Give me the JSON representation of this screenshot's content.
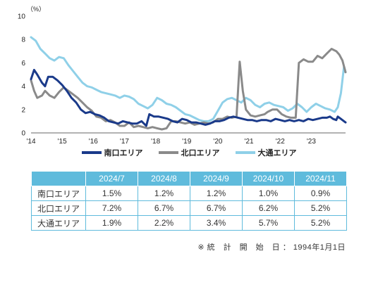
{
  "chart_data": {
    "type": "line",
    "ylabel": "（%）",
    "ylim": [
      0,
      10
    ],
    "yticks": [
      0,
      2,
      4,
      6,
      8,
      10
    ],
    "xlim": [
      2014.0,
      2024.1
    ],
    "xticks": [
      {
        "value": 2014,
        "label": "'14"
      },
      {
        "value": 2015,
        "label": "'15"
      },
      {
        "value": 2016,
        "label": "'16"
      },
      {
        "value": 2017,
        "label": "'17"
      },
      {
        "value": 2018,
        "label": "'18"
      },
      {
        "value": 2019,
        "label": "'19"
      },
      {
        "value": 2020,
        "label": "'20"
      },
      {
        "value": 2021,
        "label": "'21"
      },
      {
        "value": 2022,
        "label": "'22"
      },
      {
        "value": 2023,
        "label": "'23"
      }
    ],
    "legend_position": "bottom",
    "grid": false,
    "series": [
      {
        "name": "南口エリア",
        "color": "#1a3a8a",
        "points": [
          [
            2014.0,
            4.6
          ],
          [
            2014.1,
            5.4
          ],
          [
            2014.2,
            5.0
          ],
          [
            2014.35,
            4.3
          ],
          [
            2014.45,
            4.0
          ],
          [
            2014.55,
            4.8
          ],
          [
            2014.7,
            4.8
          ],
          [
            2014.85,
            4.5
          ],
          [
            2015.0,
            4.1
          ],
          [
            2015.15,
            3.6
          ],
          [
            2015.3,
            3.0
          ],
          [
            2015.45,
            2.6
          ],
          [
            2015.6,
            2.0
          ],
          [
            2015.75,
            1.7
          ],
          [
            2015.9,
            1.8
          ],
          [
            2016.05,
            1.6
          ],
          [
            2016.2,
            1.5
          ],
          [
            2016.35,
            1.3
          ],
          [
            2016.5,
            1.0
          ],
          [
            2016.65,
            0.9
          ],
          [
            2016.8,
            0.8
          ],
          [
            2016.95,
            1.0
          ],
          [
            2017.1,
            0.9
          ],
          [
            2017.25,
            0.8
          ],
          [
            2017.4,
            0.8
          ],
          [
            2017.55,
            1.0
          ],
          [
            2017.7,
            0.6
          ],
          [
            2017.8,
            1.6
          ],
          [
            2017.95,
            1.4
          ],
          [
            2018.1,
            1.4
          ],
          [
            2018.25,
            1.3
          ],
          [
            2018.4,
            1.2
          ],
          [
            2018.55,
            1.0
          ],
          [
            2018.7,
            0.9
          ],
          [
            2018.85,
            1.2
          ],
          [
            2019.0,
            1.1
          ],
          [
            2019.15,
            0.9
          ],
          [
            2019.3,
            0.9
          ],
          [
            2019.45,
            0.8
          ],
          [
            2019.6,
            0.7
          ],
          [
            2019.75,
            0.8
          ],
          [
            2019.9,
            1.0
          ],
          [
            2020.05,
            1.0
          ],
          [
            2020.2,
            1.1
          ],
          [
            2020.35,
            1.3
          ],
          [
            2020.5,
            1.4
          ],
          [
            2020.65,
            1.3
          ],
          [
            2020.8,
            1.2
          ],
          [
            2020.95,
            1.1
          ],
          [
            2021.1,
            1.1
          ],
          [
            2021.25,
            1.0
          ],
          [
            2021.4,
            1.1
          ],
          [
            2021.55,
            1.1
          ],
          [
            2021.7,
            1.0
          ],
          [
            2021.85,
            1.2
          ],
          [
            2022.0,
            1.1
          ],
          [
            2022.15,
            1.0
          ],
          [
            2022.3,
            1.1
          ],
          [
            2022.45,
            1.0
          ],
          [
            2022.6,
            1.1
          ],
          [
            2022.75,
            1.0
          ],
          [
            2022.9,
            1.2
          ],
          [
            2023.05,
            1.1
          ],
          [
            2023.2,
            1.2
          ],
          [
            2023.35,
            1.3
          ],
          [
            2023.5,
            1.3
          ],
          [
            2023.6,
            1.4
          ],
          [
            2023.7,
            1.2
          ],
          [
            2023.8,
            1.1
          ],
          [
            2023.85,
            1.4
          ],
          [
            2023.95,
            1.2
          ],
          [
            2024.05,
            1.0
          ],
          [
            2024.1,
            0.9
          ]
        ]
      },
      {
        "name": "北口エリア",
        "color": "#8a8a8a",
        "points": [
          [
            2014.0,
            4.5
          ],
          [
            2014.1,
            3.6
          ],
          [
            2014.2,
            3.0
          ],
          [
            2014.35,
            3.2
          ],
          [
            2014.45,
            3.6
          ],
          [
            2014.6,
            3.2
          ],
          [
            2014.75,
            3.0
          ],
          [
            2014.9,
            3.5
          ],
          [
            2015.05,
            3.9
          ],
          [
            2015.2,
            3.6
          ],
          [
            2015.35,
            3.3
          ],
          [
            2015.5,
            3.0
          ],
          [
            2015.65,
            2.6
          ],
          [
            2015.8,
            2.2
          ],
          [
            2015.95,
            1.9
          ],
          [
            2016.1,
            1.4
          ],
          [
            2016.25,
            1.3
          ],
          [
            2016.4,
            1.0
          ],
          [
            2016.55,
            1.1
          ],
          [
            2016.7,
            0.9
          ],
          [
            2016.85,
            0.6
          ],
          [
            2017.0,
            0.6
          ],
          [
            2017.15,
            0.9
          ],
          [
            2017.3,
            0.5
          ],
          [
            2017.45,
            0.6
          ],
          [
            2017.6,
            0.5
          ],
          [
            2017.75,
            0.4
          ],
          [
            2017.9,
            0.5
          ],
          [
            2018.05,
            0.4
          ],
          [
            2018.2,
            0.3
          ],
          [
            2018.35,
            0.4
          ],
          [
            2018.5,
            1.0
          ],
          [
            2018.65,
            1.0
          ],
          [
            2018.8,
            0.9
          ],
          [
            2018.95,
            0.8
          ],
          [
            2019.1,
            0.9
          ],
          [
            2019.25,
            0.7
          ],
          [
            2019.4,
            0.8
          ],
          [
            2019.55,
            0.9
          ],
          [
            2019.7,
            0.8
          ],
          [
            2019.85,
            0.9
          ],
          [
            2020.0,
            1.2
          ],
          [
            2020.15,
            1.2
          ],
          [
            2020.3,
            1.4
          ],
          [
            2020.45,
            1.3
          ],
          [
            2020.6,
            1.4
          ],
          [
            2020.7,
            6.1
          ],
          [
            2020.8,
            3.6
          ],
          [
            2020.9,
            2.0
          ],
          [
            2021.05,
            1.5
          ],
          [
            2021.2,
            1.4
          ],
          [
            2021.35,
            1.5
          ],
          [
            2021.5,
            1.6
          ],
          [
            2021.6,
            1.8
          ],
          [
            2021.75,
            2.0
          ],
          [
            2021.9,
            2.0
          ],
          [
            2022.05,
            1.6
          ],
          [
            2022.2,
            1.4
          ],
          [
            2022.35,
            1.3
          ],
          [
            2022.5,
            1.3
          ],
          [
            2022.6,
            6.0
          ],
          [
            2022.75,
            6.3
          ],
          [
            2022.9,
            6.1
          ],
          [
            2023.05,
            6.1
          ],
          [
            2023.2,
            6.6
          ],
          [
            2023.35,
            6.4
          ],
          [
            2023.5,
            6.8
          ],
          [
            2023.65,
            7.2
          ],
          [
            2023.8,
            7.0
          ],
          [
            2023.9,
            6.7
          ],
          [
            2024.0,
            6.2
          ],
          [
            2024.1,
            5.2
          ]
        ]
      },
      {
        "name": "大通エリア",
        "color": "#8fd0e8",
        "points": [
          [
            2014.0,
            8.2
          ],
          [
            2014.15,
            7.9
          ],
          [
            2014.3,
            7.2
          ],
          [
            2014.45,
            6.8
          ],
          [
            2014.6,
            6.4
          ],
          [
            2014.75,
            6.2
          ],
          [
            2014.9,
            6.5
          ],
          [
            2015.05,
            6.4
          ],
          [
            2015.2,
            5.8
          ],
          [
            2015.35,
            5.3
          ],
          [
            2015.5,
            4.8
          ],
          [
            2015.65,
            4.3
          ],
          [
            2015.8,
            4.0
          ],
          [
            2015.95,
            3.9
          ],
          [
            2016.1,
            3.7
          ],
          [
            2016.25,
            3.5
          ],
          [
            2016.4,
            3.4
          ],
          [
            2016.55,
            3.3
          ],
          [
            2016.7,
            3.2
          ],
          [
            2016.85,
            3.0
          ],
          [
            2017.0,
            3.2
          ],
          [
            2017.15,
            3.1
          ],
          [
            2017.3,
            2.9
          ],
          [
            2017.45,
            2.5
          ],
          [
            2017.6,
            2.3
          ],
          [
            2017.75,
            2.1
          ],
          [
            2017.9,
            2.4
          ],
          [
            2018.05,
            3.0
          ],
          [
            2018.2,
            2.8
          ],
          [
            2018.35,
            2.5
          ],
          [
            2018.5,
            2.4
          ],
          [
            2018.65,
            2.2
          ],
          [
            2018.8,
            1.9
          ],
          [
            2018.95,
            1.6
          ],
          [
            2019.1,
            1.5
          ],
          [
            2019.25,
            1.3
          ],
          [
            2019.4,
            1.1
          ],
          [
            2019.55,
            1.0
          ],
          [
            2019.7,
            1.0
          ],
          [
            2019.85,
            1.2
          ],
          [
            2020.0,
            1.9
          ],
          [
            2020.15,
            2.6
          ],
          [
            2020.3,
            2.9
          ],
          [
            2020.45,
            3.0
          ],
          [
            2020.6,
            2.8
          ],
          [
            2020.75,
            2.6
          ],
          [
            2020.9,
            3.0
          ],
          [
            2021.05,
            2.8
          ],
          [
            2021.2,
            2.4
          ],
          [
            2021.35,
            2.2
          ],
          [
            2021.5,
            2.5
          ],
          [
            2021.65,
            2.6
          ],
          [
            2021.8,
            2.4
          ],
          [
            2021.95,
            2.3
          ],
          [
            2022.1,
            2.2
          ],
          [
            2022.25,
            1.9
          ],
          [
            2022.4,
            2.1
          ],
          [
            2022.55,
            2.5
          ],
          [
            2022.7,
            2.2
          ],
          [
            2022.85,
            1.8
          ],
          [
            2023.0,
            2.2
          ],
          [
            2023.15,
            2.5
          ],
          [
            2023.3,
            2.3
          ],
          [
            2023.45,
            2.1
          ],
          [
            2023.6,
            2.0
          ],
          [
            2023.75,
            1.8
          ],
          [
            2023.85,
            2.2
          ],
          [
            2023.95,
            3.4
          ],
          [
            2024.05,
            5.7
          ],
          [
            2024.1,
            5.2
          ]
        ]
      }
    ]
  },
  "table": {
    "headers": [
      "",
      "2024/7",
      "2024/8",
      "2024/9",
      "2024/10",
      "2024/11"
    ],
    "rows": [
      {
        "label": "南口エリア",
        "values": [
          "1.5%",
          "1.2%",
          "1.2%",
          "1.0%",
          "0.9%"
        ]
      },
      {
        "label": "北口エリア",
        "values": [
          "7.2%",
          "6.7%",
          "6.7%",
          "6.2%",
          "5.2%"
        ]
      },
      {
        "label": "大通エリア",
        "values": [
          "1.9%",
          "2.2%",
          "3.4%",
          "5.7%",
          "5.2%"
        ]
      }
    ]
  },
  "note": "※ 統　計　開　始　日 ： 1994年1月1日"
}
